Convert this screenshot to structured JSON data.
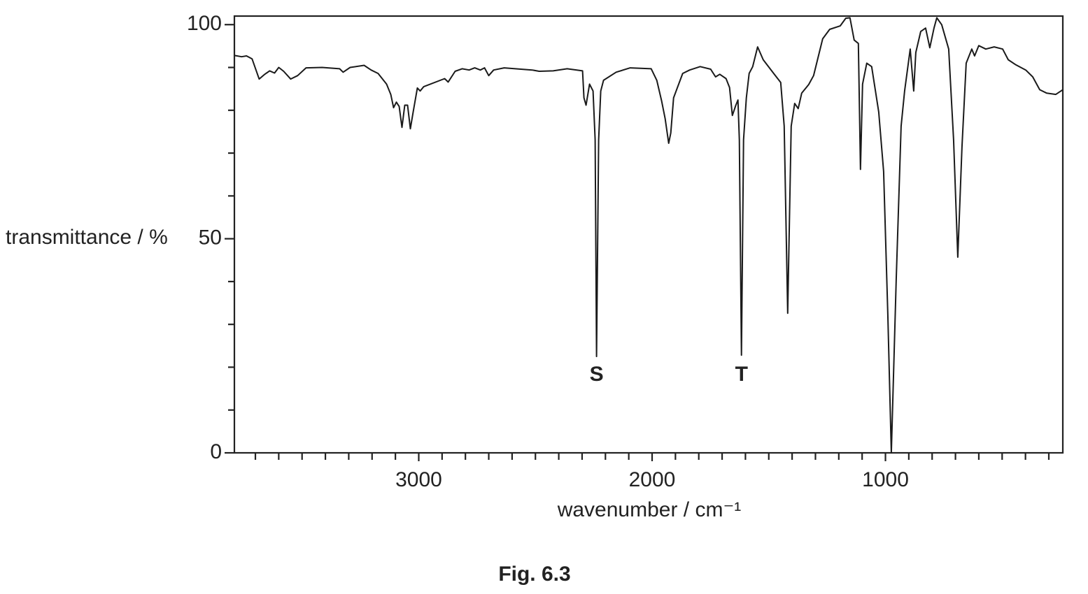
{
  "chart_data": {
    "type": "line",
    "y_label": "transmittance / %",
    "x_label": "wavenumber / cm⁻¹",
    "caption": "Fig. 6.3",
    "color": "#1a1a1a",
    "xlim": [
      3790,
      240
    ],
    "ylim": [
      0,
      102
    ],
    "xticks": [
      3000,
      2000,
      1000
    ],
    "x_minor_ticks": [
      3700,
      3600,
      3500,
      3400,
      3300,
      3200,
      3100,
      2900,
      2800,
      2700,
      2600,
      2500,
      2400,
      2300,
      2200,
      2100,
      1900,
      1800,
      1700,
      1600,
      1500,
      1400,
      1300,
      1200,
      1100,
      900,
      800,
      700,
      600,
      500,
      400,
      300
    ],
    "yticks": [
      0,
      50,
      100
    ],
    "y_minor_ticks": [
      10,
      20,
      30,
      40,
      60,
      70,
      80,
      90
    ],
    "annotations": [
      {
        "text": "S",
        "x": 2238
      },
      {
        "text": "T",
        "x": 1617
      }
    ],
    "x": [
      3789,
      3759,
      3738,
      3714,
      3684,
      3660,
      3639,
      3618,
      3600,
      3579,
      3549,
      3519,
      3483,
      3414,
      3339,
      3324,
      3294,
      3234,
      3204,
      3174,
      3138,
      3120,
      3108,
      3096,
      3084,
      3072,
      3060,
      3048,
      3036,
      3024,
      3006,
      2994,
      2979,
      2889,
      2874,
      2844,
      2814,
      2784,
      2760,
      2736,
      2718,
      2700,
      2679,
      2634,
      2514,
      2484,
      2424,
      2364,
      2298,
      2292,
      2283,
      2268,
      2253,
      2244,
      2238,
      2229,
      2220,
      2208,
      2154,
      2094,
      2004,
      1980,
      1959,
      1944,
      1929,
      1920,
      1908,
      1869,
      1839,
      1794,
      1749,
      1728,
      1710,
      1683,
      1668,
      1656,
      1641,
      1632,
      1626,
      1617,
      1608,
      1596,
      1584,
      1569,
      1548,
      1524,
      1479,
      1449,
      1434,
      1419,
      1404,
      1389,
      1374,
      1359,
      1329,
      1308,
      1269,
      1239,
      1194,
      1170,
      1152,
      1134,
      1116,
      1107,
      1098,
      1080,
      1059,
      1029,
      1008,
      990,
      975,
      954,
      933,
      918,
      894,
      879,
      870,
      849,
      828,
      810,
      792,
      780,
      759,
      729,
      708,
      690,
      672,
      654,
      630,
      618,
      600,
      570,
      534,
      498,
      474,
      444,
      399,
      369,
      339,
      309,
      270,
      240
    ],
    "values": [
      92.8,
      92.5,
      92.7,
      92.0,
      87.3,
      88.4,
      89.2,
      88.7,
      90.0,
      89.1,
      87.3,
      88.1,
      89.9,
      90.0,
      89.7,
      88.9,
      90.0,
      90.5,
      89.4,
      88.6,
      86.1,
      83.7,
      80.6,
      81.9,
      80.9,
      76.0,
      81.2,
      81.2,
      75.7,
      79.6,
      85.2,
      84.5,
      85.5,
      87.4,
      86.6,
      89.1,
      89.7,
      89.4,
      89.9,
      89.4,
      89.9,
      88.1,
      89.4,
      89.9,
      89.4,
      89.1,
      89.2,
      89.7,
      89.2,
      82.9,
      81.2,
      86.1,
      84.5,
      73.1,
      22.5,
      73.1,
      84.5,
      87.0,
      88.9,
      89.9,
      89.7,
      87.0,
      82.1,
      78.0,
      72.3,
      74.7,
      82.9,
      88.6,
      89.4,
      90.2,
      89.6,
      87.8,
      88.4,
      87.4,
      85.3,
      78.8,
      81.2,
      82.4,
      73.1,
      22.8,
      73.1,
      82.9,
      88.6,
      90.2,
      94.8,
      91.8,
      88.6,
      86.5,
      76.3,
      32.6,
      76.3,
      81.6,
      80.4,
      84.0,
      86.0,
      88.1,
      96.7,
      98.9,
      99.7,
      101.5,
      101.6,
      96.4,
      95.6,
      66.2,
      86.1,
      91.0,
      90.2,
      79.6,
      65.7,
      32.3,
      0,
      40.5,
      76.3,
      84.5,
      94.3,
      84.5,
      93.5,
      98.4,
      99.2,
      94.6,
      99.2,
      101.6,
      100.0,
      94.3,
      73.1,
      45.7,
      71.5,
      91.0,
      94.3,
      92.7,
      95.1,
      94.3,
      94.8,
      94.3,
      91.8,
      90.7,
      89.4,
      87.8,
      84.8,
      84.0,
      83.7,
      84.8
    ]
  }
}
